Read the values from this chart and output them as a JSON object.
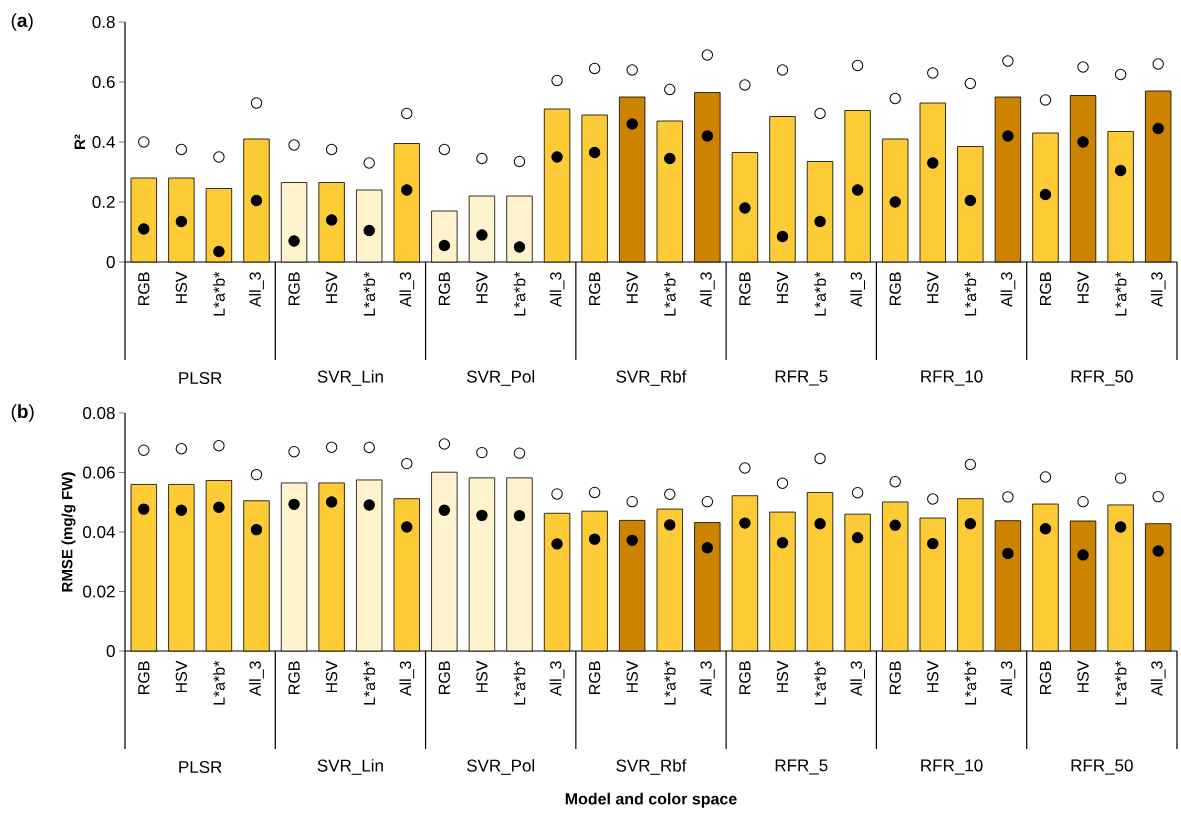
{
  "chart_data": [
    {
      "type": "bar",
      "title": "(**a**)",
      "ylabel": "R²",
      "ylim": [
        0,
        0.8
      ],
      "yticks": [
        0,
        0.2,
        0.4,
        0.6,
        0.8
      ],
      "marker": "circle",
      "categories": [
        "RGB",
        "HSV",
        "L*a*b*",
        "All_3",
        "RGB",
        "HSV",
        "L*a*b*",
        "All_3",
        "RGB",
        "HSV",
        "L*a*b*",
        "All_3",
        "RGB",
        "HSV",
        "L*a*b*",
        "All_3",
        "RGB",
        "HSV",
        "L*a*b*",
        "All_3",
        "RGB",
        "HSV",
        "L*a*b*",
        "All_3",
        "RGB",
        "HSV",
        "L*a*b*",
        "All_3"
      ],
      "annotations": [
        "PLSR",
        "SVR_Lin",
        "SVR_Pol",
        "SVR_Rbf",
        "RFR_5",
        "RFR_10",
        "RFR_50"
      ],
      "series": [
        {
          "type": "bar",
          "colors": [
            "#fdcb35",
            "#fdcb35",
            "#fdcb35",
            "#fdcb35",
            "#fff2cc",
            "#fdcb35",
            "#fff2cc",
            "#fdcb35",
            "#fff2cc",
            "#fff2cc",
            "#fff2cc",
            "#fdcb35",
            "#fdcb35",
            "#cc8400",
            "#fdcb35",
            "#cc8400",
            "#fdcb35",
            "#fdcb35",
            "#fdcb35",
            "#fdcb35",
            "#fdcb35",
            "#fdcb35",
            "#fdcb35",
            "#cc8400",
            "#fdcb35",
            "#cc8400",
            "#fdcb35",
            "#cc8400"
          ],
          "values": [
            0.28,
            0.28,
            0.245,
            0.41,
            0.265,
            0.265,
            0.24,
            0.395,
            0.17,
            0.22,
            0.22,
            0.51,
            0.49,
            0.55,
            0.47,
            0.565,
            0.365,
            0.485,
            0.335,
            0.505,
            0.41,
            0.53,
            0.385,
            0.55,
            0.43,
            0.555,
            0.435,
            0.57
          ]
        },
        {
          "type": "scatter",
          "color": "#ffffff",
          "values": [
            0.4,
            0.375,
            0.35,
            0.53,
            0.39,
            0.375,
            0.33,
            0.495,
            0.375,
            0.345,
            0.335,
            0.605,
            0.645,
            0.64,
            0.575,
            0.69,
            0.59,
            0.64,
            0.495,
            0.655,
            0.545,
            0.63,
            0.595,
            0.67,
            0.54,
            0.65,
            0.625,
            0.66
          ]
        },
        {
          "type": "scatter",
          "color": "#000000",
          "values": [
            0.11,
            0.135,
            0.035,
            0.205,
            0.07,
            0.14,
            0.105,
            0.24,
            0.055,
            0.09,
            0.05,
            0.35,
            0.365,
            0.46,
            0.345,
            0.42,
            0.18,
            0.085,
            0.135,
            0.24,
            0.2,
            0.33,
            0.205,
            0.42,
            0.225,
            0.4,
            0.305,
            0.445
          ]
        }
      ]
    },
    {
      "type": "bar",
      "title": "(**b**)",
      "ylabel": "RMSE (mg/g FW)",
      "xlabel": "Model and color space",
      "ylim": [
        0,
        0.08
      ],
      "yticks": [
        0,
        0.02,
        0.04,
        0.06,
        0.08
      ],
      "marker": "circle",
      "categories": [
        "RGB",
        "HSV",
        "L*a*b*",
        "All_3",
        "RGB",
        "HSV",
        "L*a*b*",
        "All_3",
        "RGB",
        "HSV",
        "L*a*b*",
        "All_3",
        "RGB",
        "HSV",
        "L*a*b*",
        "All_3",
        "RGB",
        "HSV",
        "L*a*b*",
        "All_3",
        "RGB",
        "HSV",
        "L*a*b*",
        "All_3",
        "RGB",
        "HSV",
        "L*a*b*",
        "All_3"
      ],
      "annotations": [
        "PLSR",
        "SVR_Lin",
        "SVR_Pol",
        "SVR_Rbf",
        "RFR_5",
        "RFR_10",
        "RFR_50"
      ],
      "series": [
        {
          "type": "bar",
          "colors": [
            "#fdcb35",
            "#fdcb35",
            "#fdcb35",
            "#fdcb35",
            "#fff2cc",
            "#fdcb35",
            "#fff2cc",
            "#fdcb35",
            "#fff2cc",
            "#fff2cc",
            "#fff2cc",
            "#fdcb35",
            "#fdcb35",
            "#cc8400",
            "#fdcb35",
            "#cc8400",
            "#fdcb35",
            "#fdcb35",
            "#fdcb35",
            "#fdcb35",
            "#fdcb35",
            "#fdcb35",
            "#fdcb35",
            "#cc8400",
            "#fdcb35",
            "#cc8400",
            "#fdcb35",
            "#cc8400"
          ],
          "values": [
            0.056,
            0.056,
            0.0573,
            0.0505,
            0.0565,
            0.0565,
            0.0575,
            0.0512,
            0.0601,
            0.0582,
            0.0582,
            0.0463,
            0.047,
            0.0439,
            0.0477,
            0.0432,
            0.0522,
            0.0467,
            0.0533,
            0.046,
            0.0501,
            0.0447,
            0.0512,
            0.0438,
            0.0494,
            0.0437,
            0.0491,
            0.0428
          ]
        },
        {
          "type": "scatter",
          "color": "#ffffff",
          "values": [
            0.0675,
            0.068,
            0.069,
            0.0593,
            0.067,
            0.0685,
            0.0684,
            0.063,
            0.0696,
            0.0667,
            0.0665,
            0.0528,
            0.0533,
            0.0502,
            0.0527,
            0.0502,
            0.0615,
            0.0564,
            0.0647,
            0.0532,
            0.0569,
            0.0511,
            0.0627,
            0.0518,
            0.0585,
            0.0502,
            0.0581,
            0.0519
          ]
        },
        {
          "type": "scatter",
          "color": "#000000",
          "values": [
            0.0477,
            0.0473,
            0.0483,
            0.0408,
            0.0493,
            0.0501,
            0.0491,
            0.0417,
            0.0473,
            0.0456,
            0.0455,
            0.036,
            0.0376,
            0.0372,
            0.0424,
            0.0347,
            0.043,
            0.0364,
            0.0428,
            0.0381,
            0.0423,
            0.0361,
            0.0428,
            0.0328,
            0.0411,
            0.0323,
            0.0417,
            0.0336
          ]
        }
      ]
    }
  ]
}
